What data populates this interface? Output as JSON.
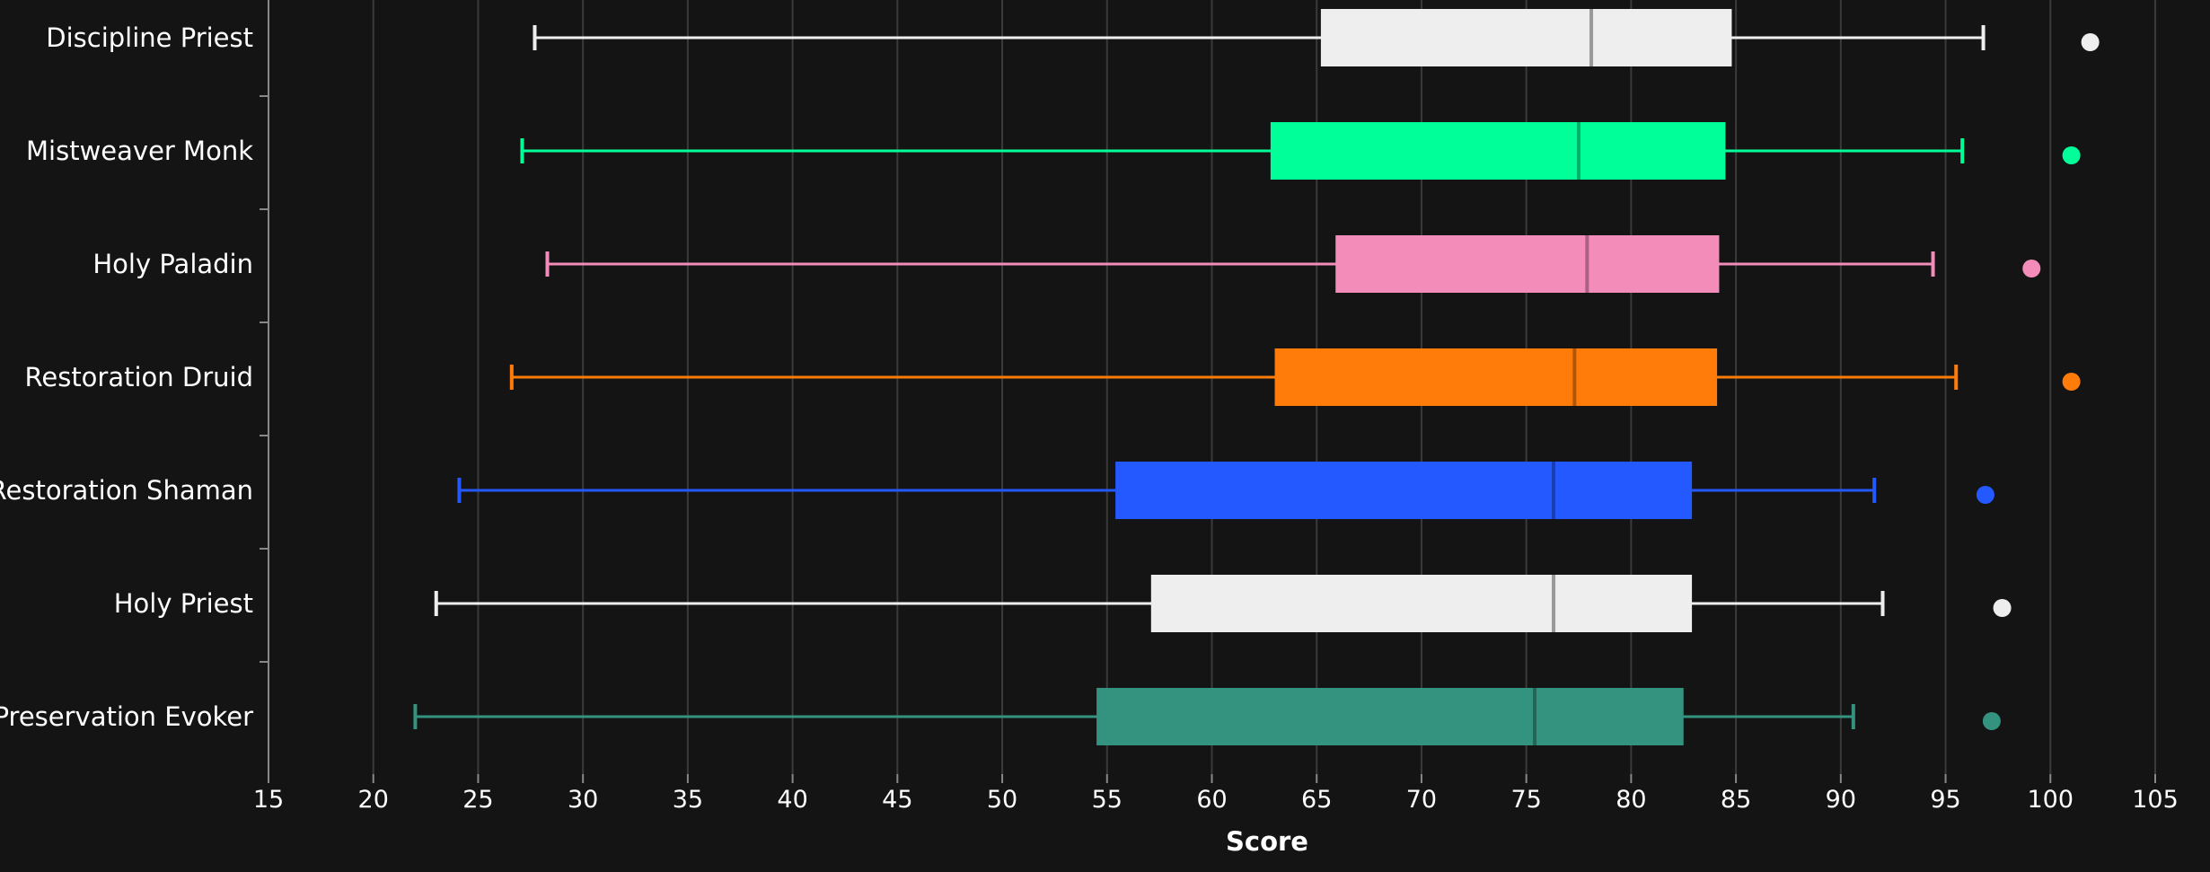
{
  "chart_data": {
    "type": "boxplot",
    "orientation": "horizontal",
    "xlabel": "Score",
    "xlim": [
      15,
      105
    ],
    "xticks": [
      15,
      20,
      25,
      30,
      35,
      40,
      45,
      50,
      55,
      60,
      65,
      70,
      75,
      80,
      85,
      90,
      95,
      100,
      105
    ],
    "grid": true,
    "colors": {
      "background": "#141414",
      "grid": "#3a3a3a",
      "median_dark": "#555555"
    },
    "series": [
      {
        "name": "Discipline Priest",
        "color": "#eeeeee",
        "min": 27.7,
        "q1": 65.2,
        "median": 78.1,
        "q3": 84.8,
        "max": 96.8,
        "outlier": 101.9
      },
      {
        "name": "Mistweaver Monk",
        "color": "#00ff98",
        "min": 27.1,
        "q1": 62.8,
        "median": 77.5,
        "q3": 84.5,
        "max": 95.8,
        "outlier": 101.0
      },
      {
        "name": "Holy Paladin",
        "color": "#f48cba",
        "min": 28.3,
        "q1": 65.9,
        "median": 77.9,
        "q3": 84.2,
        "max": 94.4,
        "outlier": 99.1
      },
      {
        "name": "Restoration Druid",
        "color": "#ff7c0a",
        "min": 26.6,
        "q1": 63.0,
        "median": 77.3,
        "q3": 84.1,
        "max": 95.5,
        "outlier": 101.0
      },
      {
        "name": "Restoration Shaman",
        "color": "#2459ff",
        "min": 24.1,
        "q1": 55.4,
        "median": 76.3,
        "q3": 82.9,
        "max": 91.6,
        "outlier": 96.9
      },
      {
        "name": "Holy Priest",
        "color": "#eeeeee",
        "min": 23.0,
        "q1": 57.1,
        "median": 76.3,
        "q3": 82.9,
        "max": 92.0,
        "outlier": 97.7
      },
      {
        "name": "Preservation Evoker",
        "color": "#33937f",
        "min": 22.0,
        "q1": 54.5,
        "median": 75.4,
        "q3": 82.5,
        "max": 90.6,
        "outlier": 97.2
      }
    ]
  }
}
